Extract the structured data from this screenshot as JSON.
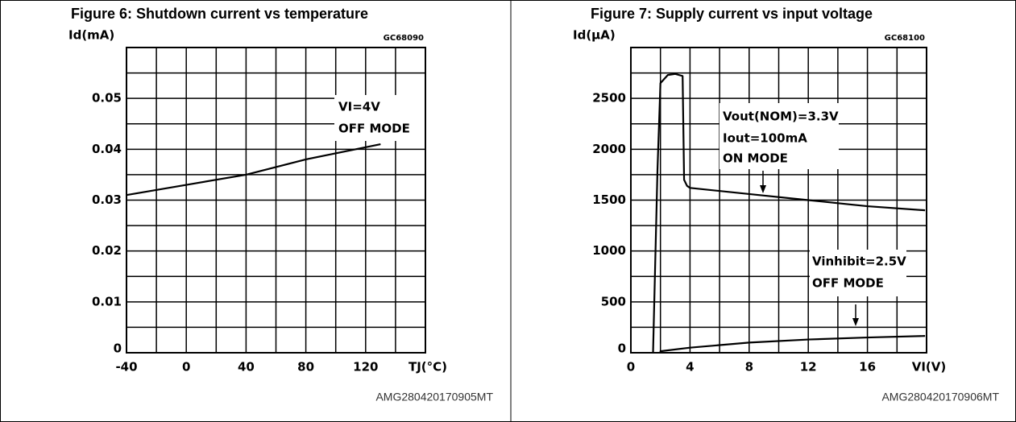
{
  "chart_data": [
    {
      "type": "line",
      "title": "Figure 6: Shutdown current vs temperature",
      "code": "GC68090",
      "ylabel": "Id(mA)",
      "xlabel": "TJ(°C)",
      "xlim": [
        -40,
        160
      ],
      "ylim": [
        0,
        0.06
      ],
      "xticks": [
        -40,
        0,
        40,
        80,
        120
      ],
      "yticks": [
        0,
        0.01,
        0.02,
        0.03,
        0.04,
        0.05
      ],
      "grid": true,
      "annotations": [
        "VI=4V",
        "OFF MODE"
      ],
      "series": [
        {
          "color": "#000000",
          "x": [
            -40,
            0,
            40,
            80,
            130
          ],
          "values": [
            0.031,
            0.033,
            0.035,
            0.038,
            0.041
          ]
        }
      ],
      "footnote": "AMG280420170905MT"
    },
    {
      "type": "line",
      "title": "Figure 7: Supply current vs input voltage",
      "code": "GC68100",
      "ylabel": "Id(µA)",
      "xlabel": "VI(V)",
      "xlim": [
        0,
        20
      ],
      "ylim": [
        0,
        3000
      ],
      "xticks": [
        0,
        4,
        8,
        12,
        16
      ],
      "yticks": [
        0,
        500,
        1000,
        1500,
        2000,
        2500
      ],
      "grid": true,
      "annotations": [
        "Vout(NOM)=3.3V",
        "Iout=100mA",
        "ON MODE",
        "Vinhibit=2.5V",
        "OFF MODE"
      ],
      "series": [
        {
          "color": "#000000",
          "x": [
            1.5,
            1.8,
            2,
            2.5,
            3,
            3.5,
            3.6,
            3.8,
            4,
            8,
            12,
            16,
            19.9
          ],
          "values": [
            0,
            1800,
            2650,
            2730,
            2740,
            2720,
            1700,
            1640,
            1620,
            1560,
            1500,
            1440,
            1400
          ]
        },
        {
          "color": "#000000",
          "x": [
            2,
            2,
            4,
            8,
            12,
            16,
            19.9
          ],
          "values": [
            0,
            15,
            50,
            100,
            130,
            150,
            165
          ]
        }
      ],
      "footnote": "AMG280420170906MT"
    }
  ]
}
